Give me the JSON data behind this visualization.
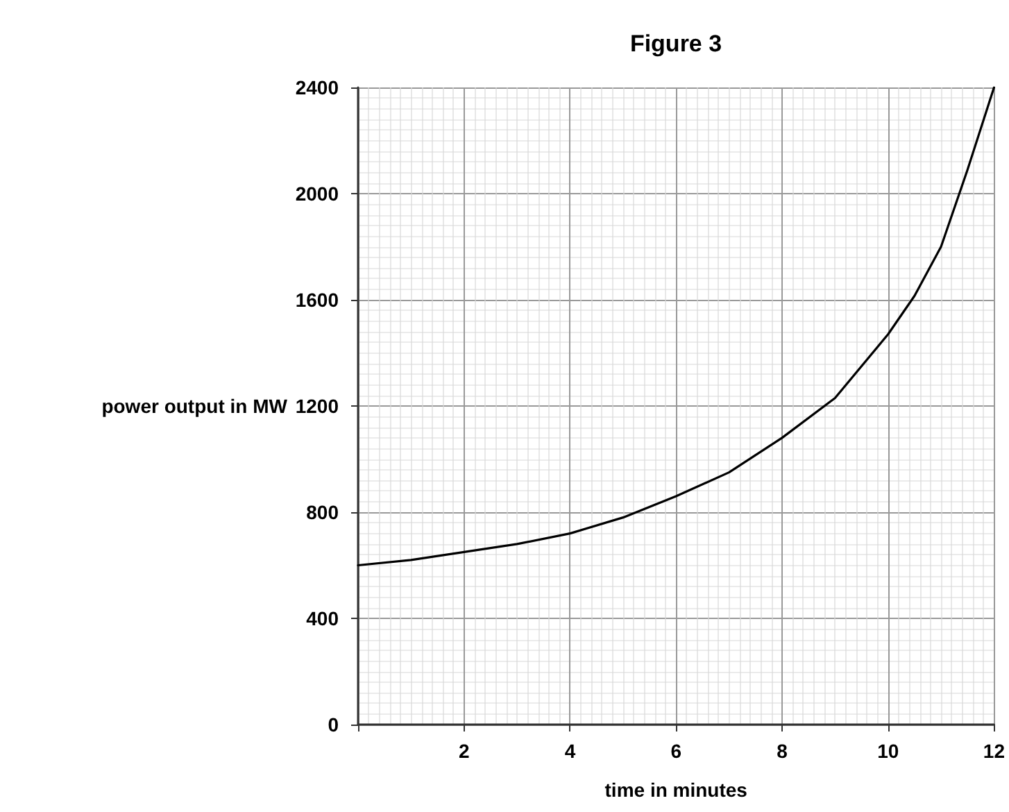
{
  "chart_data": {
    "type": "line",
    "title": "Figure 3",
    "xlabel": "time in minutes",
    "ylabel": "power output in MW",
    "x": [
      0,
      1,
      2,
      3,
      4,
      5,
      6,
      7,
      8,
      9,
      10,
      10.5,
      11,
      11.5,
      12
    ],
    "series": [
      {
        "color": "#000000",
        "values": [
          600,
          620,
          650,
          680,
          720,
          780,
          860,
          950,
          1080,
          1230,
          1470,
          1615,
          1800,
          2090,
          2400
        ]
      }
    ],
    "xlim": [
      0,
      12
    ],
    "xticks": [
      {
        "value": 0,
        "label": null
      },
      2,
      4,
      6,
      8,
      10,
      12
    ],
    "ylim": [
      0,
      2400
    ],
    "yticks": [
      0,
      400,
      800,
      1200,
      1600,
      2000,
      2400
    ],
    "grid": true,
    "marker": "none",
    "line_style": "solid"
  }
}
